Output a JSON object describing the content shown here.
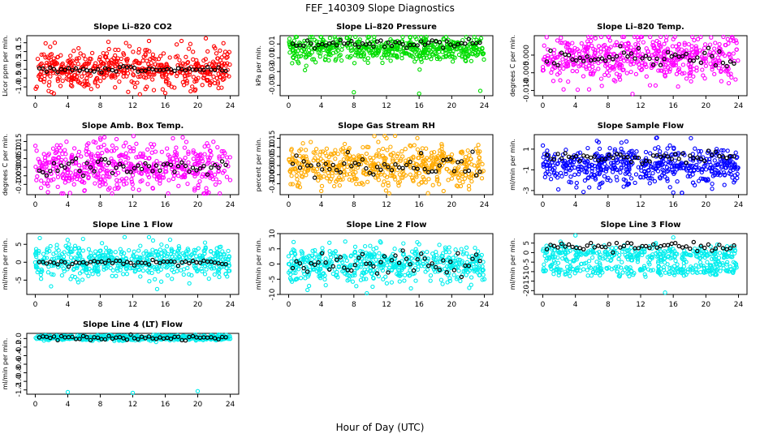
{
  "figure": {
    "title": "FEF_140309  Slope Diagnostics",
    "xlabel": "Hour of Day (UTC)"
  },
  "chart_data": [
    {
      "type": "scatter",
      "title": "Slope Li–820 CO2",
      "ylabel": "Licor ppm per min.",
      "color": "#ff0000",
      "xlim": [
        0,
        24
      ],
      "xticks": [
        0,
        4,
        8,
        12,
        16,
        20,
        24
      ],
      "ylim": [
        -1.5,
        1.9
      ],
      "yticks": [
        -1.0,
        -0.5,
        0.0,
        0.5,
        1.0,
        1.5
      ],
      "yticklabels": [
        "-1.0",
        "-0.5",
        "0.0",
        "0.5",
        "1.0",
        "1.5"
      ],
      "center": 0.0,
      "spread": 0.55,
      "ref_center": 0.0,
      "ref_spread": 0.08,
      "outliers": [
        [
          9,
          1.55
        ],
        [
          14,
          1.6
        ],
        [
          18,
          1.6
        ],
        [
          21,
          1.75
        ],
        [
          2,
          -1.3
        ],
        [
          16,
          -1.35
        ]
      ]
    },
    {
      "type": "scatter",
      "title": "Slope Li–820 Pressure",
      "ylabel": "kPa per min.",
      "color": "#00dd00",
      "xlim": [
        0,
        24
      ],
      "xticks": [
        0,
        4,
        8,
        12,
        16,
        20,
        24
      ],
      "ylim": [
        -0.065,
        0.022
      ],
      "yticks": [
        -0.05,
        -0.03,
        -0.01,
        0.01
      ],
      "yticklabels": [
        "-0.05",
        "-0.03",
        "-0.01",
        "0.01"
      ],
      "center": 0.003,
      "spread": 0.009,
      "ref_center": 0.01,
      "ref_spread": 0.004,
      "outliers": [
        [
          8,
          -0.06
        ],
        [
          16,
          -0.062
        ],
        [
          23.5,
          -0.058
        ],
        [
          2,
          -0.028
        ],
        [
          4,
          0.02
        ]
      ]
    },
    {
      "type": "scatter",
      "title": "Slope Li–820 Temp.",
      "ylabel": "degrees C per min.",
      "color": "#ff00ff",
      "xlim": [
        0,
        24
      ],
      "xticks": [
        0,
        4,
        8,
        12,
        16,
        20,
        24
      ],
      "ylim": [
        -0.0115,
        0.0055
      ],
      "yticks": [
        -0.01,
        -0.005,
        0.0
      ],
      "yticklabels": [
        "-0.010",
        "-0.005",
        "0.000"
      ],
      "center": -0.001,
      "spread": 0.0035,
      "ref_center": -0.001,
      "ref_spread": 0.0012,
      "outliers": [
        [
          11,
          -0.011
        ],
        [
          14,
          0.004
        ],
        [
          16,
          0.0045
        ]
      ]
    },
    {
      "type": "scatter",
      "title": "Slope Amb. Box Temp.",
      "ylabel": "degrees C per min.",
      "color": "#ff00ff",
      "xlim": [
        0,
        24
      ],
      "xticks": [
        0,
        4,
        8,
        12,
        16,
        20,
        24
      ],
      "ylim": [
        -0.16,
        0.19
      ],
      "yticks": [
        -0.1,
        -0.05,
        0.0,
        0.05,
        0.1,
        0.15
      ],
      "yticklabels": [
        "-0.10",
        "-0.05",
        "0.00",
        "0.05",
        "0.10",
        "0.15"
      ],
      "center": 0.01,
      "spread": 0.07,
      "ref_center": 0.0,
      "ref_spread": 0.03,
      "outliers": [
        [
          8,
          0.17
        ],
        [
          9,
          -0.13
        ]
      ]
    },
    {
      "type": "scatter",
      "title": "Slope Gas Stream RH",
      "ylabel": "percent per min.",
      "color": "#ffaa00",
      "xlim": [
        0,
        24
      ],
      "xticks": [
        0,
        4,
        8,
        12,
        16,
        20,
        24
      ],
      "ylim": [
        -0.16,
        0.17
      ],
      "yticks": [
        -0.1,
        -0.05,
        0.0,
        0.05,
        0.1,
        0.15
      ],
      "yticklabels": [
        "-0.10",
        "-0.05",
        "0.00",
        "0.05",
        "0.10",
        "0.15"
      ],
      "center": 0.0,
      "spread": 0.06,
      "ref_center": 0.0,
      "ref_spread": 0.03,
      "outliers": [
        [
          4,
          -0.14
        ],
        [
          19,
          -0.14
        ],
        [
          12,
          0.15
        ]
      ]
    },
    {
      "type": "scatter",
      "title": "Slope Sample Flow",
      "ylabel": "ml/min per min.",
      "color": "#0000ff",
      "xlim": [
        0,
        24
      ],
      "xticks": [
        0,
        4,
        8,
        12,
        16,
        20,
        24
      ],
      "ylim": [
        -3.4,
        2.4
      ],
      "yticks": [
        -3,
        -1,
        1
      ],
      "yticklabels": [
        "-3",
        "-1",
        "1"
      ],
      "center": -0.6,
      "spread": 0.9,
      "ref_center": 0.2,
      "ref_spread": 0.25,
      "outliers": [
        [
          16,
          -3.2
        ],
        [
          14,
          2.1
        ]
      ]
    },
    {
      "type": "scatter",
      "title": "Slope Line 1 Flow",
      "ylabel": "ml/min per min.",
      "color": "#00eeee",
      "xlim": [
        0,
        24
      ],
      "xticks": [
        0,
        4,
        8,
        12,
        16,
        20,
        24
      ],
      "ylim": [
        -9,
        8
      ],
      "yticks": [
        -5,
        0,
        5
      ],
      "yticklabels": [
        "-5",
        "0",
        "5"
      ],
      "center": 0.2,
      "spread": 2.3,
      "ref_center": -0.1,
      "ref_spread": 0.4,
      "outliers": [
        [
          15,
          -7.5
        ],
        [
          11,
          7
        ],
        [
          14,
          7
        ]
      ]
    },
    {
      "type": "scatter",
      "title": "Slope Line 2 Flow",
      "ylabel": "ml/min per min.",
      "color": "#00eeee",
      "xlim": [
        0,
        24
      ],
      "xticks": [
        0,
        4,
        8,
        12,
        16,
        20,
        24
      ],
      "ylim": [
        -10,
        10
      ],
      "yticks": [
        -10,
        -5,
        0,
        5,
        10
      ],
      "yticklabels": [
        "-10",
        "-5",
        "0",
        "5",
        "10"
      ],
      "center": -0.3,
      "spread": 2.8,
      "ref_center": 0.3,
      "ref_spread": 2.0,
      "outliers": [
        [
          5,
          7
        ],
        [
          16,
          6.5
        ],
        [
          24,
          -5
        ],
        [
          15,
          -8
        ]
      ]
    },
    {
      "type": "scatter",
      "title": "Slope Line 3 Flow",
      "ylabel": "ml/min per min.",
      "color": "#00eeee",
      "xlim": [
        0,
        24
      ],
      "xticks": [
        0,
        4,
        8,
        12,
        16,
        20,
        24
      ],
      "ylim": [
        -22,
        10
      ],
      "yticks": [
        -20,
        -15,
        -10,
        -5,
        0,
        5
      ],
      "yticklabels": [
        "-20",
        "-15",
        "-10",
        "-5",
        "0",
        "5"
      ],
      "center": -1,
      "spread": 2.5,
      "ref_center": 3,
      "ref_spread": 1.0,
      "outliers": [
        [
          4,
          9
        ],
        [
          16,
          8
        ],
        [
          15,
          -21
        ]
      ],
      "secondary_band": {
        "center": -9,
        "spread": 1.8
      }
    },
    {
      "type": "scatter",
      "title": "Slope Line 4 (LT) Flow",
      "ylabel": "ml/min per min.",
      "color": "#00eeee",
      "xlim": [
        0,
        24
      ],
      "xticks": [
        0,
        4,
        8,
        12,
        16,
        20,
        24
      ],
      "ylim": [
        -1.3,
        0.12
      ],
      "yticks": [
        -1.2,
        -1.0,
        -0.8,
        -0.6,
        -0.4,
        -0.2,
        0.0
      ],
      "yticklabels": [
        "-1.2",
        "-1.0",
        "-0.8",
        "-0.6",
        "-0.4",
        "-0.2",
        "0.0"
      ],
      "center": 0.02,
      "spread": 0.03,
      "ref_center": 0.02,
      "ref_spread": 0.03,
      "outliers": [
        [
          4,
          -1.25
        ],
        [
          12,
          -1.27
        ],
        [
          20,
          -1.23
        ]
      ]
    }
  ]
}
